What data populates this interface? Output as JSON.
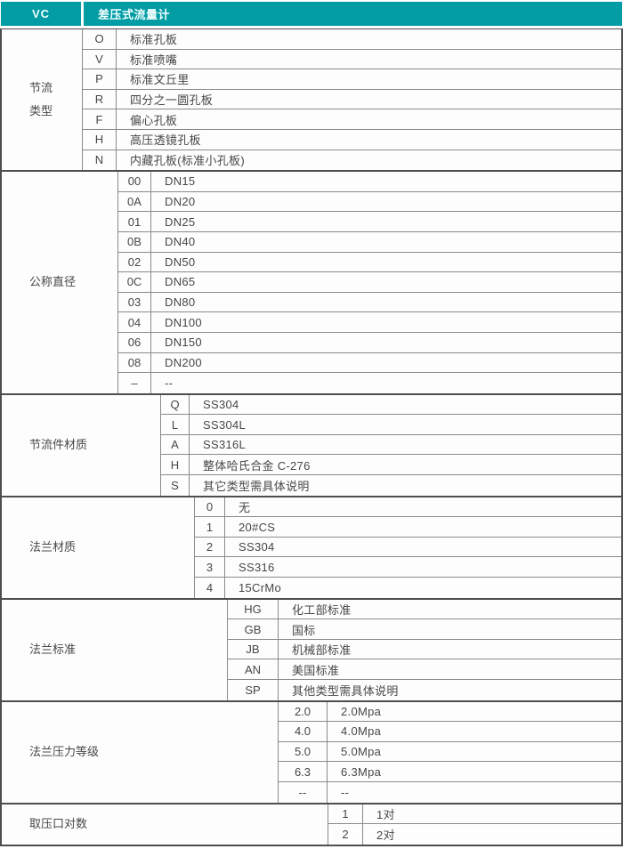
{
  "header": {
    "model": "VC",
    "product": "差压式流量计"
  },
  "colors": {
    "accent": "#019ca4",
    "header_text": "#f2ffff",
    "grid": "#8a8a8a",
    "frame": "#4e4e4e",
    "text": "#474747",
    "background": "#fdfdfd"
  },
  "sections": [
    {
      "label": "节流\n类型",
      "rows": [
        {
          "code": "O",
          "desc": "标准孔板"
        },
        {
          "code": "V",
          "desc": "标准喷嘴"
        },
        {
          "code": "P",
          "desc": "标准文丘里"
        },
        {
          "code": "R",
          "desc": "四分之一圆孔板"
        },
        {
          "code": "F",
          "desc": "偏心孔板"
        },
        {
          "code": "H",
          "desc": "高压透镜孔板"
        },
        {
          "code": "N",
          "desc": "内藏孔板(标准小孔板)"
        }
      ]
    },
    {
      "label": "公称直径",
      "rows": [
        {
          "code": "00",
          "desc": "DN15"
        },
        {
          "code": "0A",
          "desc": "DN20"
        },
        {
          "code": "01",
          "desc": "DN25"
        },
        {
          "code": "0B",
          "desc": "DN40"
        },
        {
          "code": "02",
          "desc": "DN50"
        },
        {
          "code": "0C",
          "desc": "DN65"
        },
        {
          "code": "03",
          "desc": "DN80"
        },
        {
          "code": "04",
          "desc": "DN100"
        },
        {
          "code": "06",
          "desc": "DN150"
        },
        {
          "code": "08",
          "desc": "DN200"
        },
        {
          "code": "–",
          "desc": "--"
        }
      ]
    },
    {
      "label": "节流件材质",
      "rows": [
        {
          "code": "Q",
          "desc": "SS304"
        },
        {
          "code": "L",
          "desc": "SS304L"
        },
        {
          "code": "A",
          "desc": "SS316L"
        },
        {
          "code": "H",
          "desc": "整体哈氏合金 C-276"
        },
        {
          "code": "S",
          "desc": "其它类型需具体说明"
        }
      ]
    },
    {
      "label": "法兰材质",
      "rows": [
        {
          "code": "0",
          "desc": "无"
        },
        {
          "code": "1",
          "desc": "20#CS"
        },
        {
          "code": "2",
          "desc": "SS304"
        },
        {
          "code": "3",
          "desc": "SS316"
        },
        {
          "code": "4",
          "desc": "15CrMo"
        }
      ]
    },
    {
      "label": "法兰标准",
      "rows": [
        {
          "code": "HG",
          "desc": "化工部标准"
        },
        {
          "code": "GB",
          "desc": "国标"
        },
        {
          "code": "JB",
          "desc": "机械部标准"
        },
        {
          "code": "AN",
          "desc": "美国标准"
        },
        {
          "code": "SP",
          "desc": "其他类型需具体说明"
        }
      ]
    },
    {
      "label": "法兰压力等级",
      "rows": [
        {
          "code": "2.0",
          "desc": "2.0Mpa"
        },
        {
          "code": "4.0",
          "desc": "4.0Mpa"
        },
        {
          "code": "5.0",
          "desc": "5.0Mpa"
        },
        {
          "code": "6.3",
          "desc": "6.3Mpa"
        },
        {
          "code": "--",
          "desc": "--"
        }
      ]
    },
    {
      "label": "取压口对数",
      "rows": [
        {
          "code": "1",
          "desc": "1对"
        },
        {
          "code": "2",
          "desc": "2对"
        }
      ]
    }
  ]
}
